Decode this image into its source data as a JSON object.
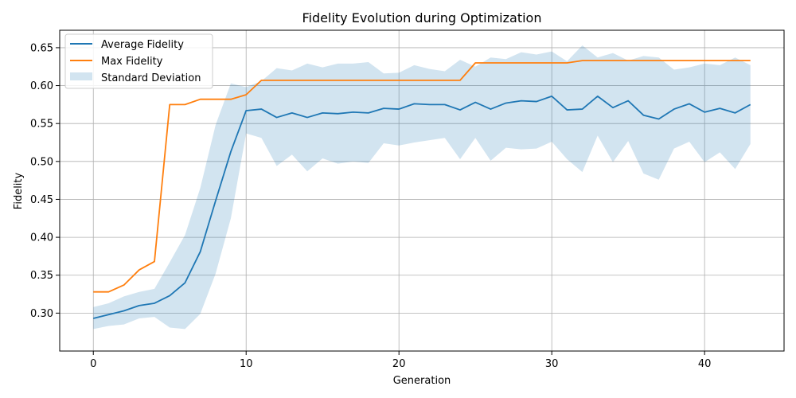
{
  "chart_data": {
    "type": "line",
    "title": "Fidelity Evolution during Optimization",
    "xlabel": "Generation",
    "ylabel": "Fidelity",
    "xlim": [
      -2.2,
      45.2
    ],
    "ylim": [
      0.25,
      0.673
    ],
    "xticks": [
      0,
      10,
      20,
      30,
      40
    ],
    "yticks": [
      0.3,
      0.35,
      0.4,
      0.45,
      0.5,
      0.55,
      0.6,
      0.65
    ],
    "ytick_labels": [
      "0.30",
      "0.35",
      "0.40",
      "0.45",
      "0.50",
      "0.55",
      "0.60",
      "0.65"
    ],
    "grid": true,
    "legend_position": "top-left",
    "x": [
      0,
      1,
      2,
      3,
      4,
      5,
      6,
      7,
      8,
      9,
      10,
      11,
      12,
      13,
      14,
      15,
      16,
      17,
      18,
      19,
      20,
      21,
      22,
      23,
      24,
      25,
      26,
      27,
      28,
      29,
      30,
      31,
      32,
      33,
      34,
      35,
      36,
      37,
      38,
      39,
      40,
      41,
      42,
      43
    ],
    "series": [
      {
        "name": "Average Fidelity",
        "color": "#1f77b4",
        "values": [
          0.293,
          0.298,
          0.303,
          0.31,
          0.313,
          0.323,
          0.34,
          0.381,
          0.448,
          0.513,
          0.567,
          0.569,
          0.558,
          0.564,
          0.558,
          0.564,
          0.563,
          0.565,
          0.564,
          0.57,
          0.569,
          0.576,
          0.575,
          0.575,
          0.568,
          0.578,
          0.569,
          0.577,
          0.58,
          0.579,
          0.586,
          0.568,
          0.569,
          0.586,
          0.571,
          0.58,
          0.561,
          0.556,
          0.569,
          0.576,
          0.565,
          0.57,
          0.564,
          0.575
        ]
      },
      {
        "name": "Max Fidelity",
        "color": "#ff7f0e",
        "values": [
          0.328,
          0.328,
          0.337,
          0.357,
          0.368,
          0.575,
          0.575,
          0.582,
          0.582,
          0.582,
          0.588,
          0.607,
          0.607,
          0.607,
          0.607,
          0.607,
          0.607,
          0.607,
          0.607,
          0.607,
          0.607,
          0.607,
          0.607,
          0.607,
          0.607,
          0.63,
          0.63,
          0.63,
          0.63,
          0.63,
          0.63,
          0.63,
          0.633,
          0.633,
          0.633,
          0.633,
          0.633,
          0.633,
          0.633,
          0.633,
          0.633,
          0.633,
          0.633,
          0.633
        ]
      }
    ],
    "band": {
      "name": "Standard Deviation",
      "color": "#1f77b4",
      "opacity": 0.2,
      "upper": [
        0.308,
        0.313,
        0.322,
        0.328,
        0.332,
        0.367,
        0.403,
        0.465,
        0.548,
        0.603,
        0.598,
        0.606,
        0.623,
        0.62,
        0.629,
        0.624,
        0.629,
        0.629,
        0.631,
        0.616,
        0.617,
        0.627,
        0.622,
        0.619,
        0.634,
        0.625,
        0.637,
        0.635,
        0.644,
        0.641,
        0.645,
        0.632,
        0.653,
        0.637,
        0.643,
        0.633,
        0.639,
        0.637,
        0.621,
        0.624,
        0.629,
        0.627,
        0.637,
        0.627
      ],
      "lower": [
        0.279,
        0.283,
        0.285,
        0.293,
        0.295,
        0.281,
        0.279,
        0.299,
        0.352,
        0.425,
        0.537,
        0.531,
        0.494,
        0.509,
        0.487,
        0.504,
        0.497,
        0.5,
        0.498,
        0.524,
        0.521,
        0.525,
        0.528,
        0.531,
        0.503,
        0.531,
        0.501,
        0.518,
        0.516,
        0.517,
        0.526,
        0.503,
        0.486,
        0.534,
        0.499,
        0.527,
        0.484,
        0.476,
        0.517,
        0.526,
        0.499,
        0.512,
        0.49,
        0.523
      ]
    }
  }
}
